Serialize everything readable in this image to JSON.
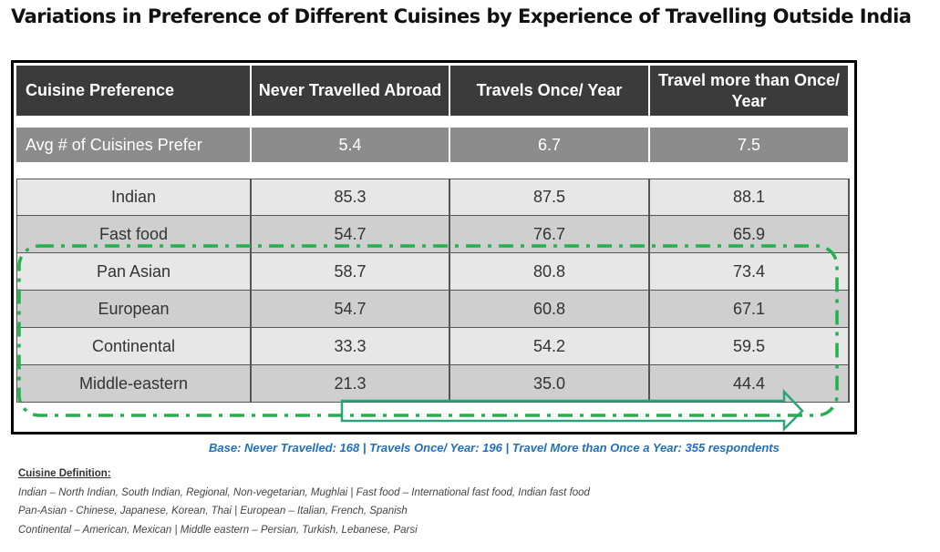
{
  "title": "Variations in Preference of Different Cuisines by Experience of Travelling Outside India",
  "chart_data": {
    "type": "table",
    "columns": [
      "Cuisine Preference",
      "Never Travelled Abroad",
      "Travels Once/ Year",
      "Travel more than Once/ Year"
    ],
    "summary_row": {
      "label": "Avg # of Cuisines Prefer",
      "values": [
        "5.4",
        "6.7",
        "7.5"
      ]
    },
    "rows": [
      {
        "label": "Indian",
        "values": [
          "85.3",
          "87.5",
          "88.1"
        ]
      },
      {
        "label": "Fast food",
        "values": [
          "54.7",
          "76.7",
          "65.9"
        ]
      },
      {
        "label": "Pan Asian",
        "values": [
          "58.7",
          "80.8",
          "73.4"
        ]
      },
      {
        "label": "European",
        "values": [
          "54.7",
          "60.8",
          "67.1"
        ]
      },
      {
        "label": "Continental",
        "values": [
          "33.3",
          "54.2",
          "59.5"
        ]
      },
      {
        "label": "Middle-eastern",
        "values": [
          "21.3",
          "35.0",
          "44.4"
        ]
      }
    ],
    "highlight_color": "#22b14c",
    "arrow_color": "#2aa57a"
  },
  "base_note": "Base: Never Travelled: 168 | Travels Once/ Year: 196 | Travel More than Once a Year: 355 respondents",
  "definitions": {
    "heading": "Cuisine Definition:",
    "lines": [
      "Indian – North Indian, South Indian, Regional, Non-vegetarian, Mughlai | Fast food – International fast food, Indian fast food",
      "Pan-Asian  - Chinese, Japanese, Korean, Thai | European – Italian, French, Spanish",
      "Continental – American, Mexican | Middle eastern – Persian, Turkish, Lebanese, Parsi"
    ]
  }
}
